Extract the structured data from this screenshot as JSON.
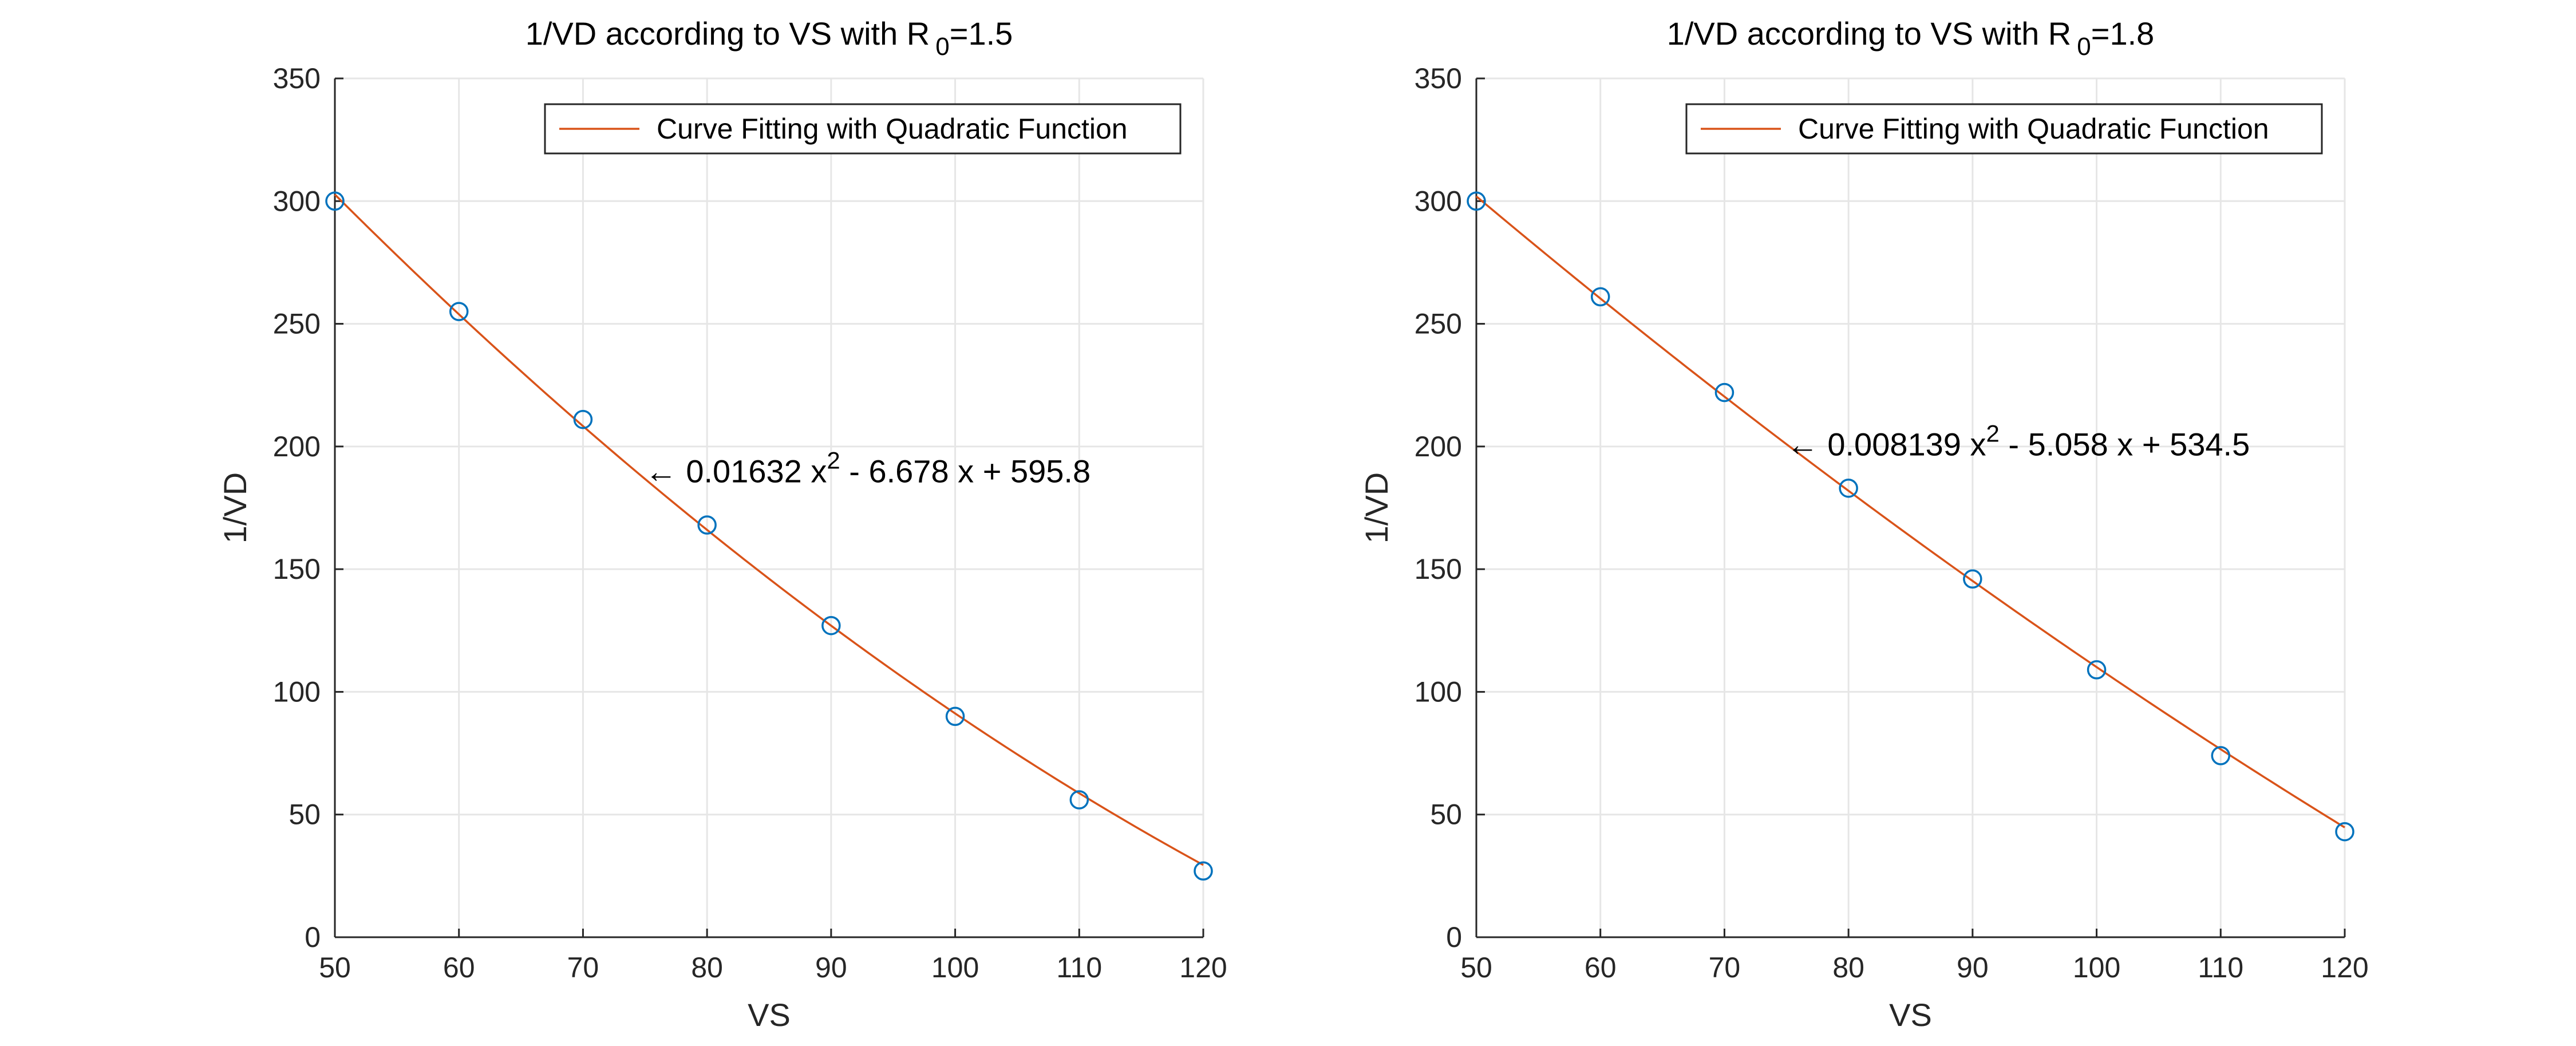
{
  "chart_data": [
    {
      "type": "scatter",
      "title": "1/VD according to VS with R",
      "title_subscript": "0",
      "title_suffix": "=1.5",
      "xlabel": "VS",
      "ylabel": "1/VD",
      "xlim": [
        50,
        120
      ],
      "ylim": [
        0,
        350
      ],
      "xticks": [
        50,
        60,
        70,
        80,
        90,
        100,
        110,
        120
      ],
      "yticks": [
        0,
        50,
        100,
        150,
        200,
        250,
        300,
        350
      ],
      "x": [
        50,
        60,
        70,
        80,
        90,
        100,
        110,
        120
      ],
      "y": [
        300,
        255,
        211,
        168,
        127,
        90,
        56,
        27
      ],
      "fit": {
        "a": 0.01632,
        "b": -6.678,
        "c": 595.8
      },
      "fit_color": "#D95319",
      "marker_color": "#0072BD",
      "legend": "Curve Fitting with Quadratic Function",
      "legend_position": "top-right",
      "annotation": {
        "arrow": "←",
        "prefix": " 0.01632 x",
        "sup": "2",
        "suffix": " - 6.678 x + 595.8",
        "x": 75,
        "y": 190
      },
      "grid": true
    },
    {
      "type": "scatter",
      "title": "1/VD according to VS with R",
      "title_subscript": "0",
      "title_suffix": "=1.8",
      "xlabel": "VS",
      "ylabel": "1/VD",
      "xlim": [
        50,
        120
      ],
      "ylim": [
        0,
        350
      ],
      "xticks": [
        50,
        60,
        70,
        80,
        90,
        100,
        110,
        120
      ],
      "yticks": [
        0,
        50,
        100,
        150,
        200,
        250,
        300,
        350
      ],
      "x": [
        50,
        60,
        70,
        80,
        90,
        100,
        110,
        120
      ],
      "y": [
        300,
        261,
        222,
        183,
        146,
        109,
        74,
        43
      ],
      "fit": {
        "a": 0.008139,
        "b": -5.058,
        "c": 534.5
      },
      "fit_color": "#D95319",
      "marker_color": "#0072BD",
      "legend": "Curve Fitting with Quadratic Function",
      "legend_position": "top-right",
      "annotation": {
        "arrow": "←",
        "prefix": " 0.008139 x",
        "sup": "2",
        "suffix": " - 5.058 x + 534.5",
        "x": 75,
        "y": 201
      },
      "grid": true
    }
  ]
}
